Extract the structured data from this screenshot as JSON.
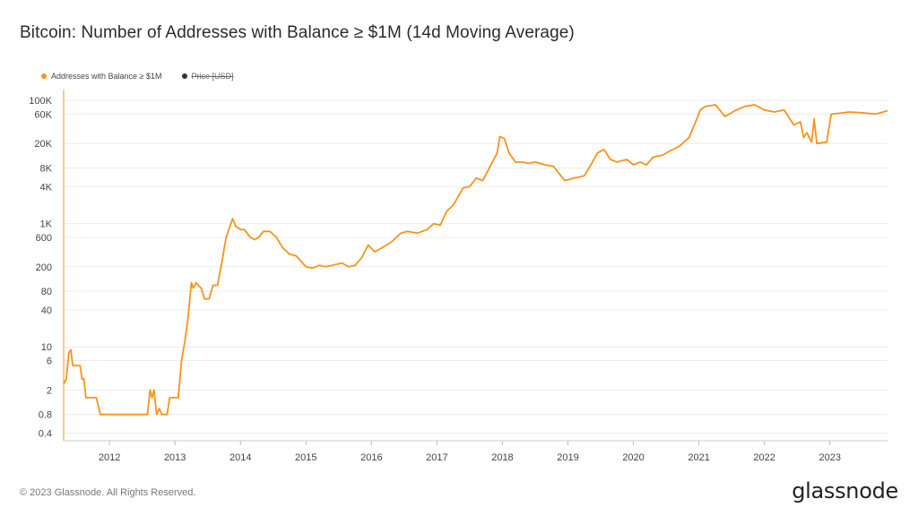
{
  "title": "Bitcoin: Number of Addresses with Balance ≥ $1M (14d Moving Average)",
  "legend": [
    {
      "label": "Addresses with Balance ≥ $1M",
      "color": "#f7931a",
      "active": true
    },
    {
      "label": "Price [USD]",
      "color": "#333333",
      "active": false
    }
  ],
  "footer": "© 2023 Glassnode. All Rights Reserved.",
  "brand": "glassnode",
  "chart_data": {
    "type": "line",
    "title": "Bitcoin: Number of Addresses with Balance ≥ $1M (14d Moving Average)",
    "y_scale": "log",
    "ylim": [
      0.3,
      150000
    ],
    "xlim": [
      2011.3,
      2023.88
    ],
    "x_ticks": [
      "2012",
      "2013",
      "2014",
      "2015",
      "2016",
      "2017",
      "2018",
      "2019",
      "2020",
      "2021",
      "2022",
      "2023"
    ],
    "y_ticks": [
      {
        "value": 100000,
        "label": "100K"
      },
      {
        "value": 60000,
        "label": "60K"
      },
      {
        "value": 20000,
        "label": "20K"
      },
      {
        "value": 8000,
        "label": "8K"
      },
      {
        "value": 4000,
        "label": "4K"
      },
      {
        "value": 1000,
        "label": "1K"
      },
      {
        "value": 600,
        "label": "600"
      },
      {
        "value": 200,
        "label": "200"
      },
      {
        "value": 80,
        "label": "80"
      },
      {
        "value": 40,
        "label": "40"
      },
      {
        "value": 10,
        "label": "10"
      },
      {
        "value": 6,
        "label": "6"
      },
      {
        "value": 2,
        "label": "2"
      },
      {
        "value": 0.8,
        "label": "0.8"
      },
      {
        "value": 0.4,
        "label": "0.4"
      }
    ],
    "grid": true,
    "legend_position": "top-left",
    "series": [
      {
        "name": "Addresses with Balance ≥ $1M",
        "color": "#f7931a",
        "points": [
          [
            2011.3,
            2.5
          ],
          [
            2011.34,
            3
          ],
          [
            2011.38,
            8
          ],
          [
            2011.41,
            9
          ],
          [
            2011.44,
            5
          ],
          [
            2011.5,
            5
          ],
          [
            2011.55,
            5
          ],
          [
            2011.58,
            3
          ],
          [
            2011.61,
            3
          ],
          [
            2011.64,
            1.5
          ],
          [
            2011.8,
            1.5
          ],
          [
            2011.86,
            0.8
          ],
          [
            2012.0,
            0.8
          ],
          [
            2012.3,
            0.8
          ],
          [
            2012.58,
            0.8
          ],
          [
            2012.62,
            2
          ],
          [
            2012.65,
            1.5
          ],
          [
            2012.68,
            2
          ],
          [
            2012.72,
            0.8
          ],
          [
            2012.76,
            1
          ],
          [
            2012.8,
            0.8
          ],
          [
            2012.88,
            0.8
          ],
          [
            2012.92,
            1.5
          ],
          [
            2013.05,
            1.5
          ],
          [
            2013.1,
            6
          ],
          [
            2013.15,
            12
          ],
          [
            2013.2,
            30
          ],
          [
            2013.25,
            110
          ],
          [
            2013.28,
            90
          ],
          [
            2013.32,
            110
          ],
          [
            2013.4,
            90
          ],
          [
            2013.45,
            60
          ],
          [
            2013.52,
            60
          ],
          [
            2013.58,
            100
          ],
          [
            2013.65,
            100
          ],
          [
            2013.72,
            250
          ],
          [
            2013.78,
            600
          ],
          [
            2013.88,
            1200
          ],
          [
            2013.93,
            900
          ],
          [
            2014.0,
            800
          ],
          [
            2014.06,
            800
          ],
          [
            2014.15,
            600
          ],
          [
            2014.22,
            550
          ],
          [
            2014.28,
            600
          ],
          [
            2014.35,
            750
          ],
          [
            2014.45,
            750
          ],
          [
            2014.55,
            600
          ],
          [
            2014.65,
            400
          ],
          [
            2014.75,
            320
          ],
          [
            2014.85,
            300
          ],
          [
            2014.95,
            230
          ],
          [
            2015.0,
            200
          ],
          [
            2015.1,
            190
          ],
          [
            2015.2,
            210
          ],
          [
            2015.3,
            200
          ],
          [
            2015.4,
            210
          ],
          [
            2015.55,
            230
          ],
          [
            2015.65,
            200
          ],
          [
            2015.75,
            210
          ],
          [
            2015.85,
            280
          ],
          [
            2015.95,
            450
          ],
          [
            2016.05,
            350
          ],
          [
            2016.15,
            400
          ],
          [
            2016.3,
            500
          ],
          [
            2016.45,
            700
          ],
          [
            2016.55,
            750
          ],
          [
            2016.7,
            700
          ],
          [
            2016.85,
            800
          ],
          [
            2016.95,
            1000
          ],
          [
            2017.05,
            950
          ],
          [
            2017.15,
            1600
          ],
          [
            2017.25,
            2000
          ],
          [
            2017.4,
            3800
          ],
          [
            2017.5,
            4000
          ],
          [
            2017.6,
            5500
          ],
          [
            2017.7,
            5000
          ],
          [
            2017.8,
            8000
          ],
          [
            2017.92,
            14000
          ],
          [
            2017.96,
            26000
          ],
          [
            2018.03,
            24000
          ],
          [
            2018.1,
            14000
          ],
          [
            2018.2,
            10000
          ],
          [
            2018.3,
            10000
          ],
          [
            2018.4,
            9500
          ],
          [
            2018.5,
            10000
          ],
          [
            2018.65,
            9000
          ],
          [
            2018.78,
            8500
          ],
          [
            2018.95,
            5000
          ],
          [
            2019.1,
            5500
          ],
          [
            2019.25,
            6000
          ],
          [
            2019.35,
            9000
          ],
          [
            2019.45,
            14000
          ],
          [
            2019.55,
            16000
          ],
          [
            2019.65,
            11000
          ],
          [
            2019.75,
            10000
          ],
          [
            2019.9,
            11000
          ],
          [
            2020.0,
            9000
          ],
          [
            2020.1,
            10000
          ],
          [
            2020.2,
            9000
          ],
          [
            2020.3,
            12000
          ],
          [
            2020.45,
            13000
          ],
          [
            2020.55,
            15000
          ],
          [
            2020.7,
            18000
          ],
          [
            2020.85,
            25000
          ],
          [
            2020.95,
            45000
          ],
          [
            2021.02,
            70000
          ],
          [
            2021.1,
            80000
          ],
          [
            2021.25,
            85000
          ],
          [
            2021.4,
            55000
          ],
          [
            2021.55,
            68000
          ],
          [
            2021.7,
            80000
          ],
          [
            2021.85,
            85000
          ],
          [
            2022.0,
            70000
          ],
          [
            2022.15,
            65000
          ],
          [
            2022.3,
            70000
          ],
          [
            2022.45,
            40000
          ],
          [
            2022.55,
            45000
          ],
          [
            2022.6,
            25000
          ],
          [
            2022.65,
            30000
          ],
          [
            2022.72,
            21000
          ],
          [
            2022.76,
            50000
          ],
          [
            2022.8,
            20000
          ],
          [
            2022.95,
            21000
          ],
          [
            2023.02,
            60000
          ],
          [
            2023.15,
            62000
          ],
          [
            2023.3,
            65000
          ],
          [
            2023.5,
            63000
          ],
          [
            2023.7,
            60000
          ],
          [
            2023.88,
            68000
          ]
        ]
      }
    ]
  }
}
